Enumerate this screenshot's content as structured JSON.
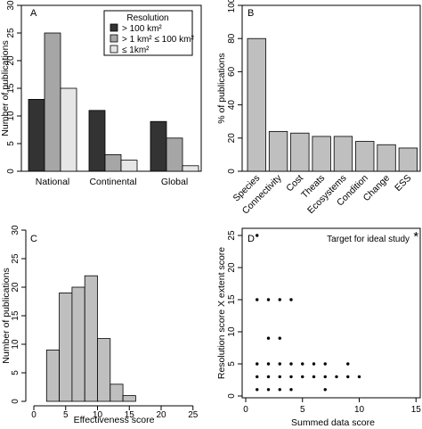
{
  "chart_data": [
    {
      "panel": "A",
      "type": "bar",
      "categories": [
        "National",
        "Continental",
        "Global"
      ],
      "series": [
        {
          "name": "> 100 km²",
          "color": "#333333",
          "values": [
            13,
            11,
            9
          ]
        },
        {
          "name": "> 1 km² ≤ 100 km²",
          "color": "#a6a6a6",
          "values": [
            25,
            3,
            6
          ]
        },
        {
          "name": "≤ 1km²",
          "color": "#e6e6e6",
          "values": [
            15,
            2,
            1
          ]
        }
      ],
      "legend_title": "Resolution",
      "ylabel": "Number of publications",
      "ylim": [
        0,
        30
      ],
      "yticks": [
        0,
        5,
        10,
        15,
        20,
        25,
        30
      ]
    },
    {
      "panel": "B",
      "type": "bar",
      "categories": [
        "Species",
        "Connectivity",
        "Cost",
        "Theats",
        "Ecosystems",
        "Condition",
        "Change",
        "ESS"
      ],
      "values": [
        80,
        24,
        23,
        21,
        21,
        18,
        16,
        14
      ],
      "color": "#bfbfbf",
      "ylabel": "% of publications",
      "ylim": [
        0,
        100
      ],
      "yticks": [
        0,
        20,
        40,
        60,
        80,
        100
      ]
    },
    {
      "panel": "C",
      "type": "bar",
      "bins": [
        [
          2,
          4
        ],
        [
          4,
          6
        ],
        [
          6,
          8
        ],
        [
          8,
          10
        ],
        [
          10,
          12
        ],
        [
          12,
          14
        ],
        [
          14,
          16
        ]
      ],
      "values": [
        9,
        19,
        20,
        22,
        11,
        3,
        1
      ],
      "color": "#bfbfbf",
      "xlabel": "Effectiveness score",
      "ylabel": "Number of publications",
      "xlim": [
        0,
        25
      ],
      "xticks": [
        0,
        5,
        10,
        15,
        20,
        25
      ],
      "ylim": [
        0,
        30
      ],
      "yticks": [
        0,
        5,
        10,
        15,
        20,
        25,
        30
      ]
    },
    {
      "panel": "D",
      "type": "scatter",
      "points": [
        [
          1,
          25
        ],
        [
          1,
          15
        ],
        [
          2,
          15
        ],
        [
          3,
          15
        ],
        [
          4,
          15
        ],
        [
          2,
          9
        ],
        [
          3,
          9
        ],
        [
          1,
          5
        ],
        [
          2,
          5
        ],
        [
          3,
          5
        ],
        [
          4,
          5
        ],
        [
          5,
          5
        ],
        [
          6,
          5
        ],
        [
          7,
          5
        ],
        [
          9,
          5
        ],
        [
          1,
          3
        ],
        [
          2,
          3
        ],
        [
          3,
          3
        ],
        [
          4,
          3
        ],
        [
          5,
          3
        ],
        [
          6,
          3
        ],
        [
          7,
          3
        ],
        [
          8,
          3
        ],
        [
          9,
          3
        ],
        [
          10,
          3
        ],
        [
          1,
          1
        ],
        [
          2,
          1
        ],
        [
          3,
          1
        ],
        [
          4,
          1
        ],
        [
          7,
          1
        ]
      ],
      "target": {
        "x": 15,
        "y": 25,
        "label": "Target for ideal study"
      },
      "xlabel": "Summed data score",
      "ylabel": "Resolution score X extent score",
      "xlim": [
        0,
        15
      ],
      "xticks": [
        0,
        5,
        10,
        15
      ],
      "ylim": [
        0,
        25
      ],
      "yticks": [
        0,
        5,
        10,
        15,
        20,
        25
      ]
    }
  ]
}
